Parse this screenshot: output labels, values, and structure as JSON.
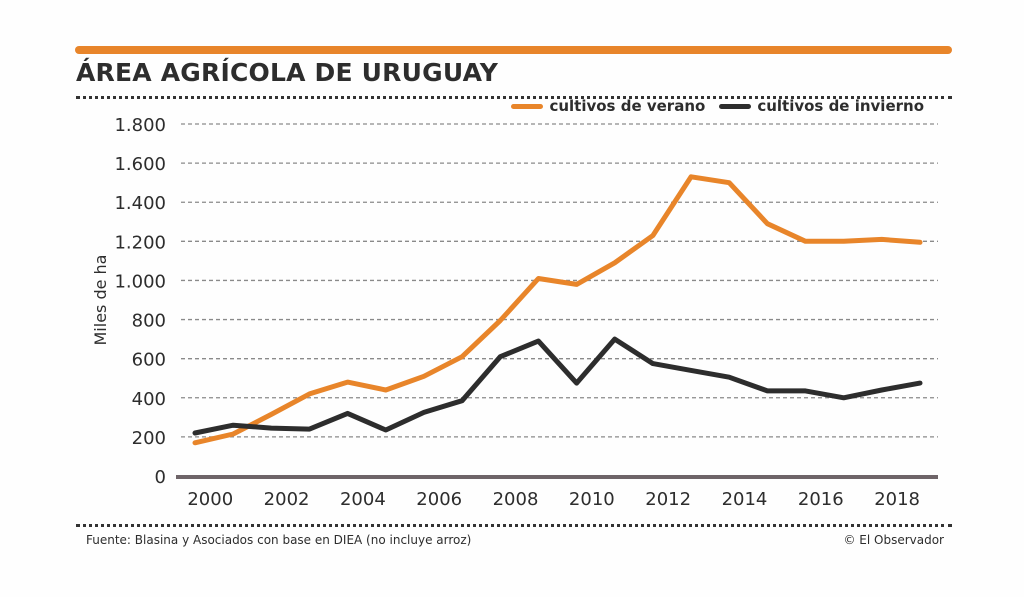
{
  "title": "ÁREA AGRÍCOLA DE URUGUAY",
  "source": "Fuente: Blasina y Asociados con base en DIEA (no incluye arroz)",
  "credit": "© El Observador",
  "colors": {
    "accent": "#e8852a",
    "summer": "#e8852a",
    "winter": "#2d2d2d"
  },
  "chart_data": {
    "type": "line",
    "title": "ÁREA AGRÍCOLA DE URUGUAY",
    "xlabel": "",
    "ylabel": "Miles de ha",
    "ylim": [
      0,
      1800
    ],
    "yticks": [
      0,
      200,
      400,
      600,
      800,
      1000,
      1200,
      1400,
      1600,
      1800
    ],
    "ytick_labels": [
      "0",
      "200",
      "400",
      "600",
      "800",
      "1.000",
      "1.200",
      "1.400",
      "1.600",
      "1.800"
    ],
    "xticks": [
      2000,
      2002,
      2004,
      2006,
      2008,
      2010,
      2012,
      2014,
      2016,
      2018
    ],
    "xtick_labels": [
      "2000",
      "2002",
      "2004",
      "2006",
      "2008",
      "2010",
      "2012",
      "2014",
      "2016",
      "2018"
    ],
    "xlim": [
      1999.25,
      2019.25
    ],
    "grid": "horizontal-dashed",
    "legend": "top-right",
    "x": [
      1999.6,
      2000.6,
      2001.6,
      2002.6,
      2003.6,
      2004.6,
      2005.6,
      2006.6,
      2007.6,
      2008.6,
      2009.6,
      2010.6,
      2011.6,
      2012.6,
      2013.6,
      2014.6,
      2015.6,
      2016.6,
      2017.6,
      2018.6
    ],
    "series": [
      {
        "name": "cultivos de verano",
        "color": "#e8852a",
        "values": [
          170,
          215,
          315,
          420,
          480,
          440,
          510,
          610,
          795,
          1010,
          980,
          1090,
          1230,
          1530,
          1500,
          1290,
          1200,
          1200,
          1210,
          1195
        ]
      },
      {
        "name": "cultivos de invierno",
        "color": "#2d2d2d",
        "values": [
          220,
          260,
          245,
          240,
          320,
          235,
          325,
          385,
          610,
          690,
          475,
          700,
          575,
          540,
          505,
          435,
          435,
          400,
          440,
          475
        ]
      }
    ]
  }
}
